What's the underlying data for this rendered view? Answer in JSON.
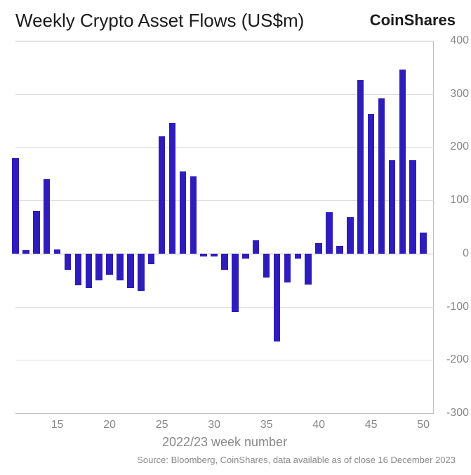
{
  "chart": {
    "type": "bar",
    "title": "Weekly Crypto Asset Flows (US$m)",
    "brand": "CoinShares",
    "caption": "Source: Bloomberg, CoinShares, data available as of close 16 December 2023",
    "xlabel": "2022/23 week number",
    "title_fontsize": 26,
    "brand_fontsize": 22,
    "caption_fontsize": 13,
    "xlabel_fontsize": 18,
    "tick_fontsize": 16,
    "tick_color": "#888888",
    "text_color": "#1a1a1a",
    "background_color": "#ffffff",
    "grid_color": "#dcdcdc",
    "axis_line_color": "#bfbfbf",
    "bar_color": "#2e1dba",
    "bar_width": 0.64,
    "y": {
      "min": -300,
      "max": 400,
      "step": 100
    },
    "x": {
      "min": 11,
      "max": 51
    },
    "xticks": [
      15,
      20,
      25,
      30,
      35,
      40,
      45,
      50
    ],
    "weeks": [
      11,
      12,
      13,
      14,
      15,
      16,
      17,
      18,
      19,
      20,
      21,
      22,
      23,
      24,
      25,
      26,
      27,
      28,
      29,
      30,
      31,
      32,
      33,
      34,
      35,
      36,
      37,
      38,
      39,
      40,
      41,
      42,
      43,
      44,
      45,
      46,
      47,
      48,
      49,
      50
    ],
    "values": [
      180,
      7,
      80,
      140,
      8,
      -30,
      -60,
      -65,
      -50,
      -40,
      -50,
      -65,
      -70,
      -20,
      220,
      245,
      155,
      145,
      -5,
      -5,
      -30,
      -110,
      -10,
      25,
      -45,
      -165,
      -55,
      -10,
      -58,
      20,
      78,
      15,
      68,
      326,
      263,
      292,
      175,
      346,
      175,
      40
    ]
  }
}
